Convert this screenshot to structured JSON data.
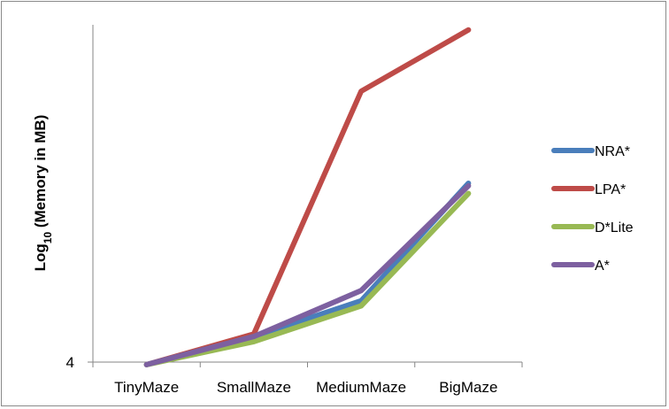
{
  "chart_data": {
    "type": "line",
    "title": "",
    "xlabel": "",
    "ylabel_main": "Log",
    "ylabel_sub": "10",
    "ylabel_rest": " (Memory in MB)",
    "y_tick_label": "4",
    "y_min": 4,
    "ylim": [
      4,
      17.2
    ],
    "categories": [
      "TinyMaze",
      "SmallMaze",
      "MediumMaze",
      "BigMaze"
    ],
    "series": [
      {
        "name": "NRA*",
        "color": "#4a7ebb",
        "values": [
          3.9,
          5.0,
          6.4,
          11.0
        ]
      },
      {
        "name": "LPA*",
        "color": "#be4b48",
        "values": [
          3.9,
          5.1,
          14.6,
          17.0
        ]
      },
      {
        "name": "D*Lite",
        "color": "#98b954",
        "values": [
          3.9,
          4.8,
          6.2,
          10.6
        ]
      },
      {
        "name": "A*",
        "color": "#7d60a0",
        "values": [
          3.9,
          5.0,
          6.8,
          10.9
        ]
      }
    ],
    "legend_position": "right",
    "grid": false
  }
}
